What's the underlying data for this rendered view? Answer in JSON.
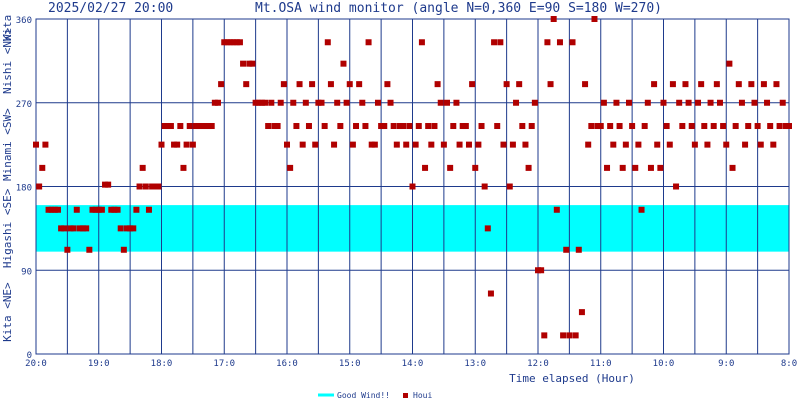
{
  "header": {
    "timestamp": "2025/02/27 20:00",
    "title": "Mt.OSA wind monitor (angle N=0,360 E=90 S=180 W=270)"
  },
  "colors": {
    "good_band": "#00ffff",
    "marker": "#b00000",
    "grid": "#1e3a8c",
    "axis_text": "#1e3a8c",
    "side_label": "#1e3a8c"
  },
  "chart_data": {
    "type": "scatter",
    "title": "Mt.OSA wind monitor (angle N=0,360 E=90 S=180 W=270)",
    "xlabel": "Time elapsed (Hour)",
    "ylabel": "",
    "x_unit": "hour-of-day (decreasing left to right)",
    "xlim": [
      20,
      8
    ],
    "ylim": [
      0,
      360
    ],
    "x_ticks": [
      "20:0",
      "19:0",
      "18:0",
      "17:0",
      "16:0",
      "15:0",
      "14:0",
      "13:0",
      "12:0",
      "11:0",
      "10:0",
      "9:0",
      "8:0"
    ],
    "y_ticks": [
      "0",
      "90",
      "180",
      "270",
      "360"
    ],
    "side_labels": [
      "Kita <NE>",
      "Higashi <SE>",
      "Minami <SW>",
      "Nishi <NW>",
      "Kita"
    ],
    "good_band": {
      "name": "Good Wind!!",
      "from": 110,
      "to": 160
    },
    "legend": [
      {
        "name": "Good Wind!!",
        "type": "band"
      },
      {
        "name": "Houi",
        "type": "marker"
      }
    ],
    "series": [
      {
        "name": "Houi",
        "points": [
          [
            20.0,
            225
          ],
          [
            19.95,
            180
          ],
          [
            19.9,
            200
          ],
          [
            19.85,
            225
          ],
          [
            19.8,
            155
          ],
          [
            19.75,
            155
          ],
          [
            19.7,
            155
          ],
          [
            19.65,
            155
          ],
          [
            19.6,
            135
          ],
          [
            19.55,
            135
          ],
          [
            19.5,
            112
          ],
          [
            19.45,
            135
          ],
          [
            19.4,
            135
          ],
          [
            19.35,
            155
          ],
          [
            19.3,
            135
          ],
          [
            19.25,
            135
          ],
          [
            19.2,
            135
          ],
          [
            19.15,
            112
          ],
          [
            19.1,
            155
          ],
          [
            19.05,
            155
          ],
          [
            19.0,
            155
          ],
          [
            18.95,
            155
          ],
          [
            18.9,
            182
          ],
          [
            18.85,
            182
          ],
          [
            18.8,
            155
          ],
          [
            18.75,
            155
          ],
          [
            18.7,
            155
          ],
          [
            18.65,
            135
          ],
          [
            18.6,
            112
          ],
          [
            18.55,
            135
          ],
          [
            18.5,
            135
          ],
          [
            18.45,
            135
          ],
          [
            18.4,
            155
          ],
          [
            18.35,
            180
          ],
          [
            18.3,
            200
          ],
          [
            18.25,
            180
          ],
          [
            18.2,
            155
          ],
          [
            18.15,
            180
          ],
          [
            18.1,
            180
          ],
          [
            18.05,
            180
          ],
          [
            18.0,
            225
          ],
          [
            17.95,
            245
          ],
          [
            17.9,
            245
          ],
          [
            17.85,
            245
          ],
          [
            17.8,
            225
          ],
          [
            17.75,
            225
          ],
          [
            17.7,
            245
          ],
          [
            17.65,
            200
          ],
          [
            17.6,
            225
          ],
          [
            17.55,
            245
          ],
          [
            17.5,
            225
          ],
          [
            17.45,
            245
          ],
          [
            17.4,
            245
          ],
          [
            17.35,
            245
          ],
          [
            17.3,
            245
          ],
          [
            17.25,
            245
          ],
          [
            17.2,
            245
          ],
          [
            17.15,
            270
          ],
          [
            17.1,
            270
          ],
          [
            17.05,
            290
          ],
          [
            17.0,
            335
          ],
          [
            16.95,
            335
          ],
          [
            16.9,
            335
          ],
          [
            16.85,
            335
          ],
          [
            16.8,
            335
          ],
          [
            16.75,
            335
          ],
          [
            16.7,
            312
          ],
          [
            16.65,
            290
          ],
          [
            16.6,
            312
          ],
          [
            16.55,
            312
          ],
          [
            16.5,
            270
          ],
          [
            16.45,
            270
          ],
          [
            16.4,
            270
          ],
          [
            16.35,
            270
          ],
          [
            16.3,
            245
          ],
          [
            16.25,
            270
          ],
          [
            16.2,
            245
          ],
          [
            16.15,
            245
          ],
          [
            16.1,
            270
          ],
          [
            16.05,
            290
          ],
          [
            16.0,
            225
          ],
          [
            15.95,
            200
          ],
          [
            15.9,
            270
          ],
          [
            15.85,
            245
          ],
          [
            15.8,
            290
          ],
          [
            15.75,
            225
          ],
          [
            15.7,
            270
          ],
          [
            15.65,
            245
          ],
          [
            15.6,
            290
          ],
          [
            15.55,
            225
          ],
          [
            15.5,
            270
          ],
          [
            15.45,
            270
          ],
          [
            15.4,
            245
          ],
          [
            15.35,
            335
          ],
          [
            15.3,
            290
          ],
          [
            15.25,
            225
          ],
          [
            15.2,
            270
          ],
          [
            15.15,
            245
          ],
          [
            15.1,
            312
          ],
          [
            15.05,
            270
          ],
          [
            15.0,
            290
          ],
          [
            14.95,
            225
          ],
          [
            14.9,
            245
          ],
          [
            14.85,
            290
          ],
          [
            14.8,
            270
          ],
          [
            14.75,
            245
          ],
          [
            14.7,
            335
          ],
          [
            14.65,
            225
          ],
          [
            14.6,
            225
          ],
          [
            14.55,
            270
          ],
          [
            14.5,
            245
          ],
          [
            14.45,
            245
          ],
          [
            14.4,
            290
          ],
          [
            14.35,
            270
          ],
          [
            14.3,
            245
          ],
          [
            14.25,
            225
          ],
          [
            14.2,
            245
          ],
          [
            14.15,
            245
          ],
          [
            14.1,
            225
          ],
          [
            14.05,
            245
          ],
          [
            14.0,
            180
          ],
          [
            13.95,
            225
          ],
          [
            13.9,
            245
          ],
          [
            13.85,
            335
          ],
          [
            13.8,
            200
          ],
          [
            13.75,
            245
          ],
          [
            13.7,
            225
          ],
          [
            13.65,
            245
          ],
          [
            13.6,
            290
          ],
          [
            13.55,
            270
          ],
          [
            13.5,
            225
          ],
          [
            13.45,
            270
          ],
          [
            13.4,
            200
          ],
          [
            13.35,
            245
          ],
          [
            13.3,
            270
          ],
          [
            13.25,
            225
          ],
          [
            13.2,
            245
          ],
          [
            13.15,
            245
          ],
          [
            13.1,
            225
          ],
          [
            13.05,
            290
          ],
          [
            13.0,
            200
          ],
          [
            12.95,
            225
          ],
          [
            12.9,
            245
          ],
          [
            12.85,
            180
          ],
          [
            12.8,
            135
          ],
          [
            12.75,
            65
          ],
          [
            12.7,
            335
          ],
          [
            12.65,
            245
          ],
          [
            12.6,
            335
          ],
          [
            12.55,
            225
          ],
          [
            12.5,
            290
          ],
          [
            12.45,
            180
          ],
          [
            12.4,
            225
          ],
          [
            12.35,
            270
          ],
          [
            12.3,
            290
          ],
          [
            12.25,
            245
          ],
          [
            12.2,
            225
          ],
          [
            12.15,
            200
          ],
          [
            12.1,
            245
          ],
          [
            12.05,
            270
          ],
          [
            12.0,
            90
          ],
          [
            11.95,
            90
          ],
          [
            11.9,
            20
          ],
          [
            11.85,
            335
          ],
          [
            11.8,
            290
          ],
          [
            11.75,
            360
          ],
          [
            11.7,
            155
          ],
          [
            11.65,
            335
          ],
          [
            11.6,
            20
          ],
          [
            11.55,
            112
          ],
          [
            11.5,
            20
          ],
          [
            11.45,
            335
          ],
          [
            11.4,
            20
          ],
          [
            11.35,
            112
          ],
          [
            11.3,
            45
          ],
          [
            11.25,
            290
          ],
          [
            11.2,
            225
          ],
          [
            11.15,
            245
          ],
          [
            11.1,
            360
          ],
          [
            11.05,
            245
          ],
          [
            11.0,
            245
          ],
          [
            10.95,
            270
          ],
          [
            10.9,
            200
          ],
          [
            10.85,
            245
          ],
          [
            10.8,
            225
          ],
          [
            10.75,
            270
          ],
          [
            10.7,
            245
          ],
          [
            10.65,
            200
          ],
          [
            10.6,
            225
          ],
          [
            10.55,
            270
          ],
          [
            10.5,
            245
          ],
          [
            10.45,
            200
          ],
          [
            10.4,
            225
          ],
          [
            10.35,
            155
          ],
          [
            10.3,
            245
          ],
          [
            10.25,
            270
          ],
          [
            10.2,
            200
          ],
          [
            10.15,
            290
          ],
          [
            10.1,
            225
          ],
          [
            10.05,
            200
          ],
          [
            10.0,
            270
          ],
          [
            9.95,
            245
          ],
          [
            9.9,
            225
          ],
          [
            9.85,
            290
          ],
          [
            9.8,
            180
          ],
          [
            9.75,
            270
          ],
          [
            9.7,
            245
          ],
          [
            9.65,
            290
          ],
          [
            9.6,
            270
          ],
          [
            9.55,
            245
          ],
          [
            9.5,
            225
          ],
          [
            9.45,
            270
          ],
          [
            9.4,
            290
          ],
          [
            9.35,
            245
          ],
          [
            9.3,
            225
          ],
          [
            9.25,
            270
          ],
          [
            9.2,
            245
          ],
          [
            9.15,
            290
          ],
          [
            9.1,
            270
          ],
          [
            9.05,
            245
          ],
          [
            9.0,
            225
          ],
          [
            8.95,
            312
          ],
          [
            8.9,
            200
          ],
          [
            8.85,
            245
          ],
          [
            8.8,
            290
          ],
          [
            8.75,
            270
          ],
          [
            8.7,
            225
          ],
          [
            8.65,
            245
          ],
          [
            8.6,
            290
          ],
          [
            8.55,
            270
          ],
          [
            8.5,
            245
          ],
          [
            8.45,
            225
          ],
          [
            8.4,
            290
          ],
          [
            8.35,
            270
          ],
          [
            8.3,
            245
          ],
          [
            8.25,
            225
          ],
          [
            8.2,
            290
          ],
          [
            8.15,
            245
          ],
          [
            8.1,
            270
          ],
          [
            8.05,
            245
          ],
          [
            8.0,
            245
          ]
        ]
      }
    ]
  }
}
